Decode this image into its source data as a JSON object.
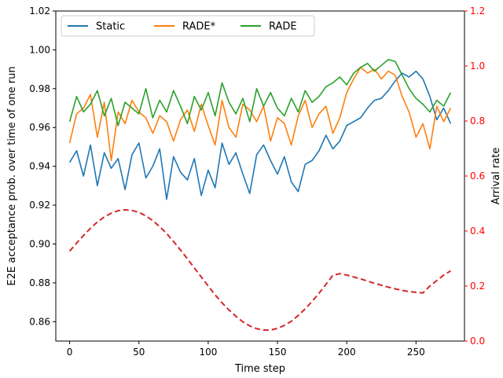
{
  "chart_data": {
    "type": "line",
    "title": "",
    "xlabel": "Time step",
    "ylabel": "E2E acceptance prob. over time of one run",
    "ylabel_right": "Arrival rate",
    "xlim": [
      -10,
      285
    ],
    "ylim": [
      0.85,
      1.02
    ],
    "ylim_right": [
      0.0,
      1.2
    ],
    "x_ticks": [
      0,
      50,
      100,
      150,
      200,
      250
    ],
    "y_ticks": [
      0.86,
      0.88,
      0.9,
      0.92,
      0.94,
      0.96,
      0.98,
      1.0,
      1.02
    ],
    "y_tick_labels": [
      "0.86",
      "0.88",
      "0.90",
      "0.92",
      "0.94",
      "0.96",
      "0.98",
      "1.00",
      "1.02"
    ],
    "y_right_ticks": [
      0.0,
      0.2,
      0.4,
      0.6,
      0.8,
      1.0,
      1.2
    ],
    "y_right_tick_labels": [
      "0.0",
      "0.2",
      "0.4",
      "0.6",
      "0.8",
      "1.0",
      "1.2"
    ],
    "right_axis_color": "#ff0000",
    "grid": false,
    "legend_position": "top-left",
    "x_step": 5,
    "series": [
      {
        "name": "Static",
        "color": "#1f77b4",
        "axis": "left",
        "values": [
          0.942,
          0.948,
          0.935,
          0.951,
          0.93,
          0.947,
          0.939,
          0.944,
          0.928,
          0.946,
          0.952,
          0.934,
          0.94,
          0.949,
          0.923,
          0.945,
          0.937,
          0.933,
          0.944,
          0.925,
          0.938,
          0.929,
          0.952,
          0.941,
          0.947,
          0.936,
          0.926,
          0.946,
          0.951,
          0.943,
          0.936,
          0.945,
          0.932,
          0.927,
          0.941,
          0.943,
          0.948,
          0.956,
          0.949,
          0.953,
          0.961,
          0.963,
          0.965,
          0.97,
          0.974,
          0.975,
          0.979,
          0.984,
          0.988,
          0.986,
          0.989,
          0.985,
          0.976,
          0.964,
          0.97,
          0.962
        ]
      },
      {
        "name": "RADE*",
        "color": "#ff7f0e",
        "axis": "left",
        "values": [
          0.952,
          0.967,
          0.97,
          0.977,
          0.955,
          0.973,
          0.943,
          0.968,
          0.962,
          0.974,
          0.968,
          0.965,
          0.957,
          0.966,
          0.963,
          0.953,
          0.964,
          0.969,
          0.958,
          0.972,
          0.961,
          0.951,
          0.974,
          0.96,
          0.955,
          0.972,
          0.969,
          0.963,
          0.971,
          0.953,
          0.965,
          0.962,
          0.951,
          0.966,
          0.974,
          0.96,
          0.967,
          0.971,
          0.957,
          0.965,
          0.978,
          0.985,
          0.991,
          0.988,
          0.99,
          0.985,
          0.989,
          0.987,
          0.976,
          0.968,
          0.955,
          0.962,
          0.949,
          0.971,
          0.963,
          0.97
        ]
      },
      {
        "name": "RADE",
        "color": "#2ca02c",
        "axis": "left",
        "values": [
          0.963,
          0.976,
          0.968,
          0.972,
          0.979,
          0.966,
          0.975,
          0.961,
          0.973,
          0.97,
          0.967,
          0.98,
          0.965,
          0.974,
          0.968,
          0.979,
          0.971,
          0.962,
          0.976,
          0.969,
          0.978,
          0.966,
          0.983,
          0.973,
          0.967,
          0.975,
          0.963,
          0.98,
          0.971,
          0.978,
          0.97,
          0.966,
          0.975,
          0.968,
          0.979,
          0.973,
          0.976,
          0.981,
          0.983,
          0.986,
          0.982,
          0.988,
          0.991,
          0.993,
          0.989,
          0.992,
          0.995,
          0.994,
          0.987,
          0.98,
          0.975,
          0.972,
          0.968,
          0.974,
          0.971,
          0.978
        ]
      },
      {
        "name": "",
        "color": "#d62728",
        "axis": "right",
        "dashed": true,
        "values": [
          0.327,
          0.356,
          0.384,
          0.41,
          0.433,
          0.451,
          0.465,
          0.474,
          0.477,
          0.475,
          0.468,
          0.455,
          0.438,
          0.416,
          0.391,
          0.362,
          0.331,
          0.299,
          0.266,
          0.233,
          0.2,
          0.168,
          0.139,
          0.113,
          0.09,
          0.07,
          0.055,
          0.045,
          0.04,
          0.04,
          0.046,
          0.057,
          0.072,
          0.093,
          0.117,
          0.144,
          0.174,
          0.206,
          0.239,
          0.245,
          0.24,
          0.233,
          0.226,
          0.218,
          0.21,
          0.203,
          0.196,
          0.19,
          0.184,
          0.18,
          0.177,
          0.175,
          0.2,
          0.22,
          0.24,
          0.255
        ]
      }
    ]
  }
}
